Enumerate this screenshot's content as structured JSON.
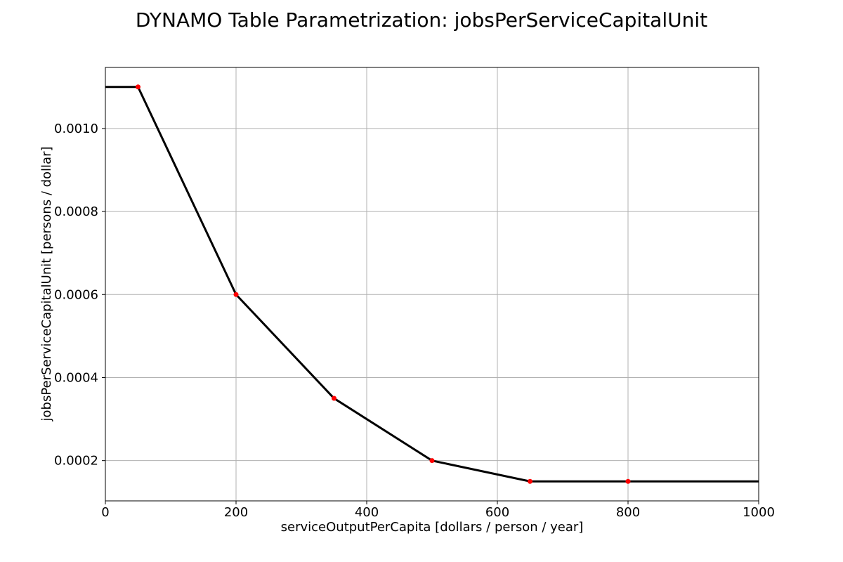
{
  "chart_data": {
    "type": "line",
    "title": "DYNAMO Table Parametrization: jobsPerServiceCapitalUnit",
    "xlabel": "serviceOutputPerCapita [dollars / person / year]",
    "ylabel": "jobsPerServiceCapitalUnit [persons / dollar]",
    "xlim": [
      0,
      1000
    ],
    "ylim": [
      0.000103,
      0.001147
    ],
    "grid": true,
    "xticks": [
      0,
      200,
      400,
      600,
      800,
      1000
    ],
    "xtick_labels": [
      "0",
      "200",
      "400",
      "600",
      "800",
      "1000"
    ],
    "yticks": [
      0.0002,
      0.0004,
      0.0006,
      0.0008,
      0.001
    ],
    "ytick_labels": [
      "0.0002",
      "0.0004",
      "0.0006",
      "0.0008",
      "0.0010"
    ],
    "line": {
      "color": "#000000",
      "x": [
        0,
        50,
        200,
        350,
        500,
        650,
        800,
        1000
      ],
      "y": [
        0.0011,
        0.0011,
        0.0006,
        0.00035,
        0.0002,
        0.00015,
        0.00015,
        0.00015
      ]
    },
    "points": {
      "color": "#ff0000",
      "x": [
        50,
        200,
        350,
        500,
        650,
        800
      ],
      "y": [
        0.0011,
        0.0006,
        0.00035,
        0.0002,
        0.00015,
        0.00015
      ]
    }
  }
}
